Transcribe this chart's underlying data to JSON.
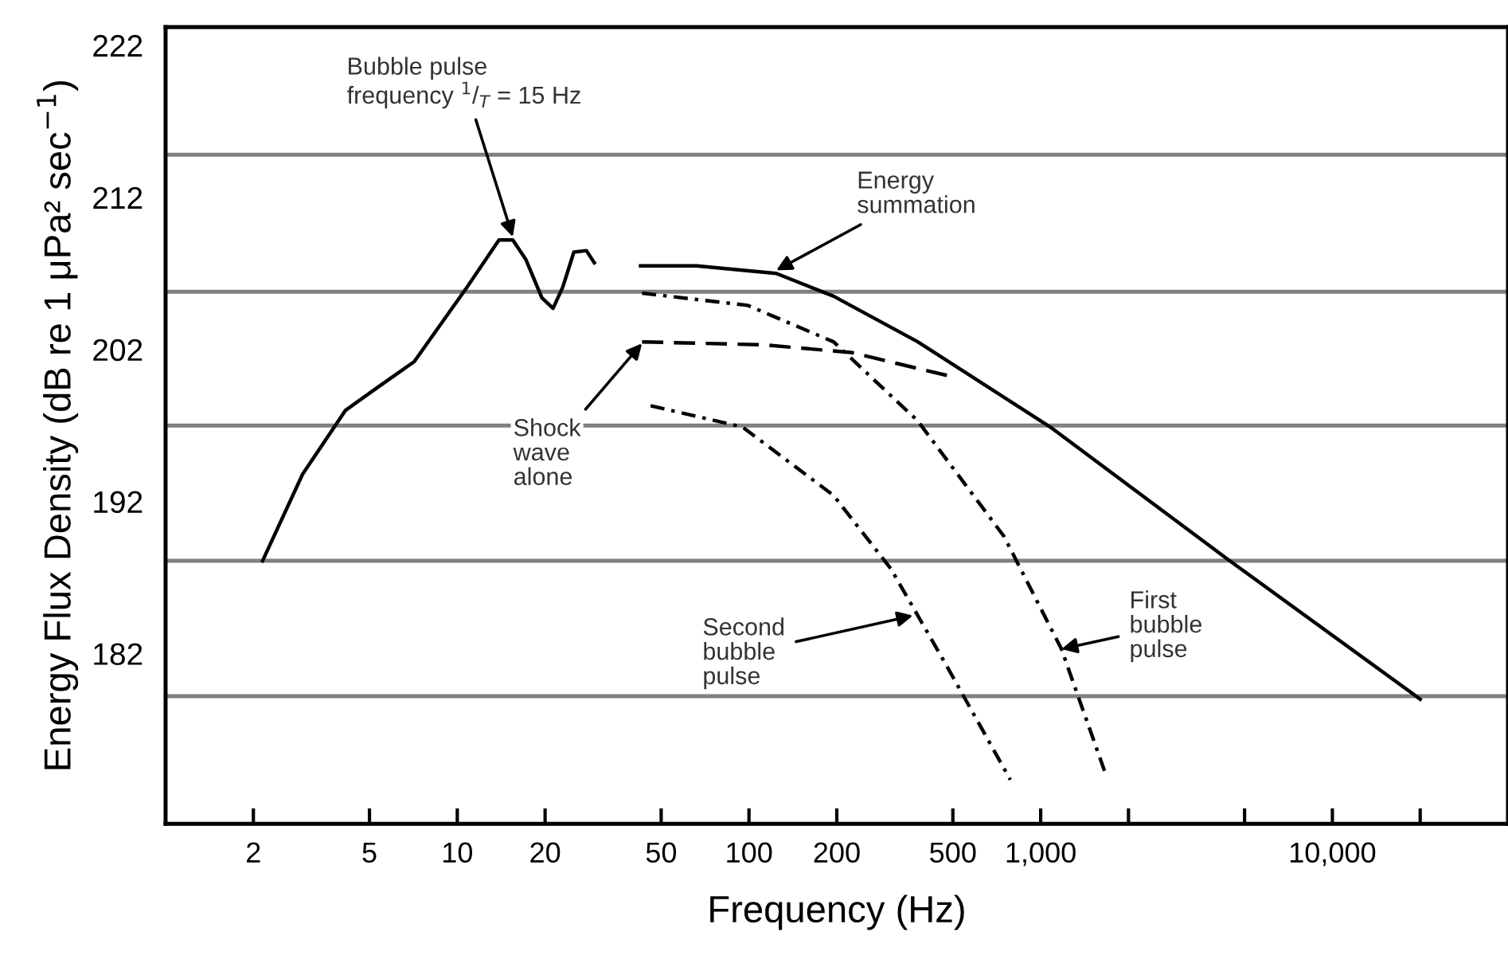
{
  "chart_data": {
    "type": "line",
    "xlabel": "Frequency (Hz)",
    "ylabel": "Energy Flux Density (dB re 1 μPa² sec$^{−1}$)",
    "log": "x",
    "xlim": [
      1,
      40000
    ],
    "xticks": [
      2,
      5,
      10,
      20,
      50,
      100,
      200,
      500,
      {
        "value": 1000,
        "label": "1,000"
      },
      {
        "value": 2000,
        "label": null
      },
      {
        "value": 5000,
        "label": null
      },
      {
        "value": 10000,
        "label": "10,000"
      },
      {
        "value": 20000,
        "label": null
      }
    ],
    "ylim": [
      170.8,
      223.2
    ],
    "yticks": [
      182,
      192,
      202,
      212,
      222
    ],
    "grid": false,
    "series": [
      {
        "color": "#000000",
        "line_style": "solid",
        "x": [
          2.15,
          2.95,
          4.14,
          5.33,
          7.12,
          10.8,
          13.9,
          15.5,
          17.2,
          19.5,
          21.3,
          23.0,
          25.1,
          27.7,
          29.5
        ],
        "values": [
          188.1,
          193.8,
          198.0,
          199.5,
          201.2,
          206.1,
          209.2,
          209.2,
          207.9,
          205.4,
          204.7,
          206.1,
          208.4,
          208.5,
          207.7
        ]
      },
      {
        "color": "#000000",
        "line_style": "solid",
        "x": [
          42.5,
          66,
          124,
          195,
          379,
          1078,
          4305,
          20000
        ],
        "values": [
          207.5,
          207.5,
          207.0,
          205.5,
          202.5,
          196.9,
          188.3,
          179.0
        ]
      },
      {
        "color": "#000000",
        "line_style": "dotted",
        "x": [
          43,
          99,
          195,
          379,
          749,
          1178,
          1675
        ],
        "values": [
          205.7,
          204.9,
          202.5,
          197.3,
          189.7,
          182.3,
          174.0
        ]
      },
      {
        "color": "#000000",
        "line_style": "dashed",
        "x": [
          43,
          113,
          224,
          500
        ],
        "values": [
          202.5,
          202.3,
          201.8,
          200.2
        ]
      },
      {
        "color": "#000000",
        "line_style": "dotted",
        "x": [
          46,
          95,
          195,
          306,
          476,
          787
        ],
        "values": [
          198.3,
          196.9,
          192.4,
          187.6,
          181.2,
          173.7
        ]
      }
    ],
    "ref_lines": [
      {
        "axis": "y",
        "value": 214.8,
        "label": null,
        "color": "#808080"
      },
      {
        "axis": "y",
        "value": 205.8,
        "label": null,
        "color": "#808080"
      },
      {
        "axis": "y",
        "value": 197.0,
        "label": null,
        "color": "#808080"
      },
      {
        "axis": "y",
        "value": 188.1,
        "label": null,
        "color": "#808080"
      },
      {
        "axis": "y",
        "value": 179.2,
        "label": null,
        "color": "#808080"
      }
    ],
    "annotations": [
      {
        "text": "Bubble pulse\nfrequency $^{1}$/$_{T}$ = 15 Hz",
        "x": 15.5,
        "y": 209.4
      },
      {
        "text": "Energy\nsummation",
        "x": 124,
        "y": 207.2
      },
      {
        "text": "Shock\nwave\nalone",
        "x": 43,
        "y": 202.4
      },
      {
        "text": "Second\nbubble\npulse",
        "x": 365,
        "y": 184.5
      },
      {
        "text": "First\nbubble\npulse",
        "x": 1178,
        "y": 182.3
      }
    ]
  }
}
